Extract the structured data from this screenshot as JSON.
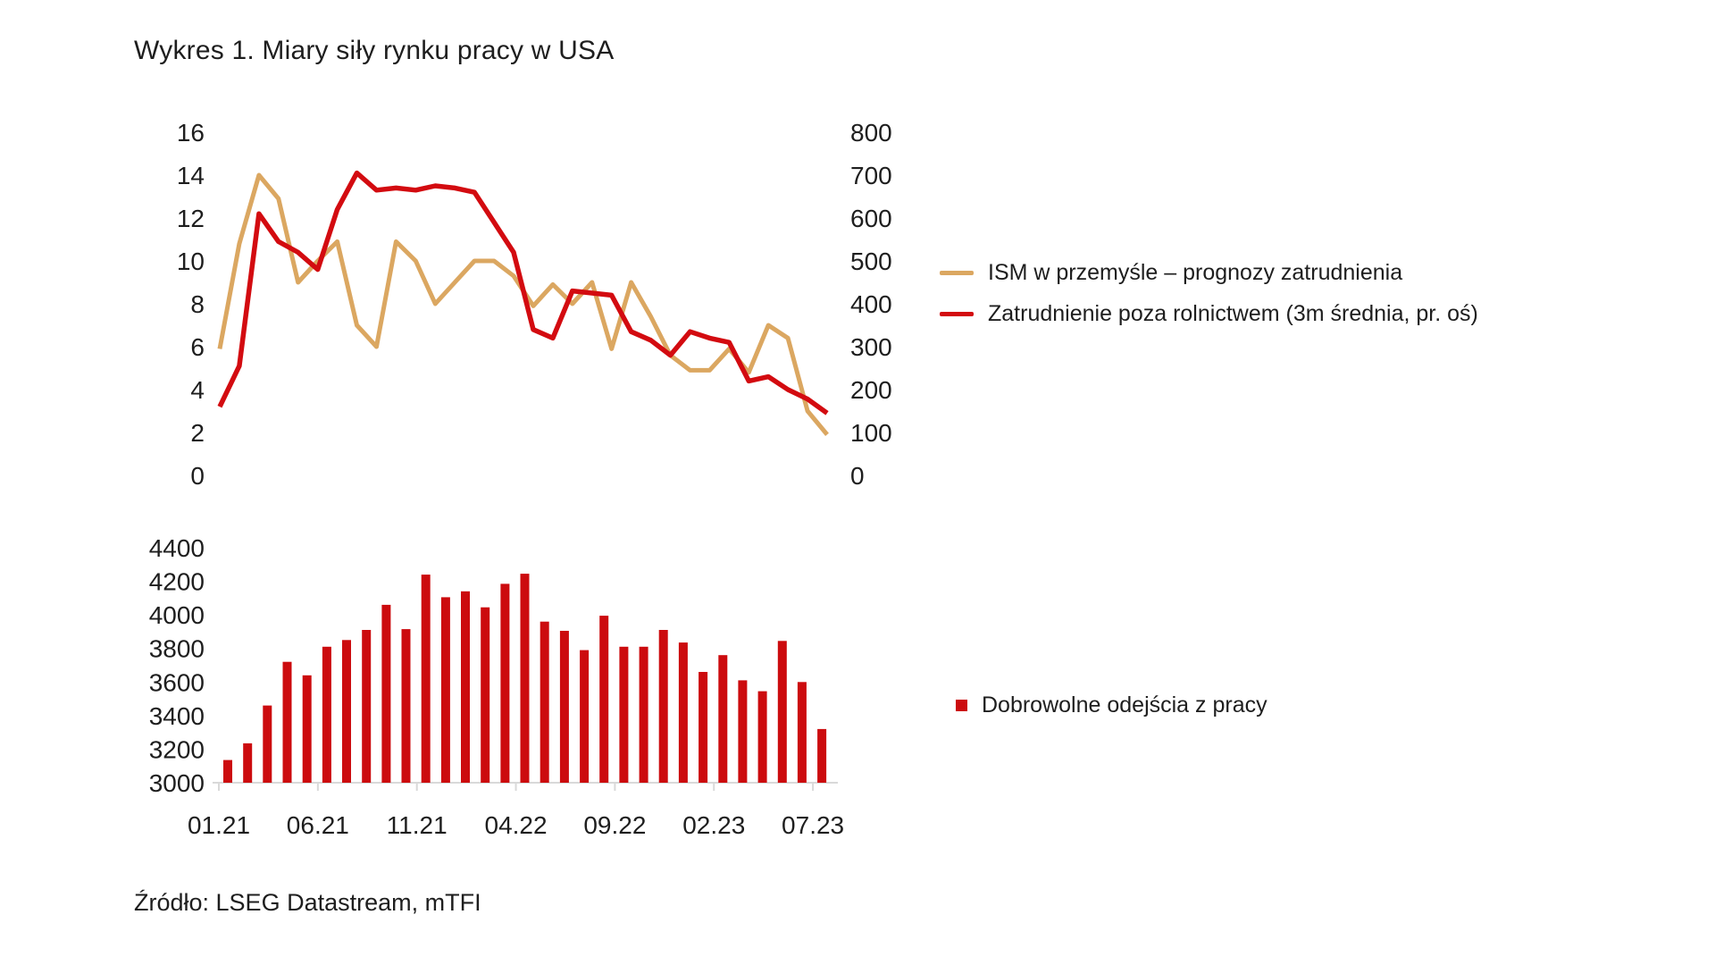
{
  "title": "Wykres 1. Miary siły rynku pracy w USA",
  "source": "Źródło: LSEG Datastream, mTFI",
  "colors": {
    "ism_line": "#DBA761",
    "payrolls_line": "#D30B10",
    "quits_bar": "#CC0B0E",
    "text": "#1e1e1e",
    "axis_baseline": "#d9d9d9"
  },
  "top_legend": [
    {
      "label": "ISM w przemyśle – prognozy zatrudnienia",
      "color": "#DBA761"
    },
    {
      "label": "Zatrudnienie poza rolnictwem (3m średnia, pr. oś)",
      "color": "#D30B10"
    }
  ],
  "bottom_legend": [
    {
      "label": "Dobrowolne odejścia z pracy",
      "color": "#CC0B0E"
    }
  ],
  "chart_data": [
    {
      "type": "line",
      "title": "Miary siły rynku pracy w USA – wykres górny",
      "x": [
        "01.21",
        "02.21",
        "03.21",
        "04.21",
        "05.21",
        "06.21",
        "07.21",
        "08.21",
        "09.21",
        "10.21",
        "11.21",
        "12.21",
        "01.22",
        "02.22",
        "03.22",
        "04.22",
        "05.22",
        "06.22",
        "07.22",
        "08.22",
        "09.22",
        "10.22",
        "11.22",
        "12.22",
        "01.23",
        "02.23",
        "03.23",
        "04.23",
        "05.23",
        "06.23",
        "07.23",
        "08.23"
      ],
      "series": [
        {
          "name": "ISM w przemyśle – prognozy zatrudnienia",
          "axis": "left",
          "color": "#DBA761",
          "values": [
            5.9,
            10.8,
            14.0,
            12.9,
            9.0,
            10.0,
            10.9,
            7.0,
            6.0,
            10.9,
            10.0,
            8.0,
            9.0,
            10.0,
            10.0,
            9.3,
            7.9,
            8.9,
            8.0,
            9.0,
            5.9,
            9.0,
            7.4,
            5.6,
            4.9,
            4.9,
            5.9,
            4.8,
            7.0,
            6.4,
            3.0,
            1.9
          ]
        },
        {
          "name": "Zatrudnienie poza rolnictwem (3m średnia, pr. oś)",
          "axis": "right",
          "color": "#D30B10",
          "values": [
            160,
            255,
            610,
            545,
            520,
            480,
            620,
            705,
            665,
            670,
            665,
            675,
            670,
            660,
            590,
            520,
            340,
            320,
            430,
            425,
            420,
            335,
            315,
            280,
            335,
            320,
            310,
            220,
            230,
            200,
            178,
            145
          ]
        }
      ],
      "left_axis": {
        "min": 0,
        "max": 16,
        "ticks": [
          0,
          2,
          4,
          6,
          8,
          10,
          12,
          14,
          16
        ]
      },
      "right_axis": {
        "min": 0,
        "max": 800,
        "ticks": [
          0,
          100,
          200,
          300,
          400,
          500,
          600,
          700,
          800
        ]
      },
      "grid": false,
      "legend_position": "right"
    },
    {
      "type": "bar",
      "title": "Dobrowolne odejścia z pracy – wykres dolny",
      "categories": [
        "01.21",
        "02.21",
        "03.21",
        "04.21",
        "05.21",
        "06.21",
        "07.21",
        "08.21",
        "09.21",
        "10.21",
        "11.21",
        "12.21",
        "01.22",
        "02.22",
        "03.22",
        "04.22",
        "05.22",
        "06.22",
        "07.22",
        "08.22",
        "09.22",
        "10.22",
        "11.22",
        "12.22",
        "01.23",
        "02.23",
        "03.23",
        "04.23",
        "05.23",
        "06.23",
        "07.23"
      ],
      "values": [
        3135,
        3235,
        3460,
        3720,
        3640,
        3810,
        3850,
        3910,
        4060,
        3915,
        4240,
        4105,
        4140,
        4045,
        4185,
        4245,
        3960,
        3905,
        3790,
        3995,
        3810,
        3810,
        3910,
        3835,
        3660,
        3760,
        3610,
        3545,
        3845,
        3600,
        3320
      ],
      "series_name": "Dobrowolne odejścia z pracy",
      "y_axis": {
        "min": 3000,
        "max": 4400,
        "ticks": [
          3000,
          3200,
          3400,
          3600,
          3800,
          4000,
          4200,
          4400
        ]
      },
      "x_tick_labels": [
        "01.21",
        "06.21",
        "11.21",
        "04.22",
        "09.22",
        "02.23",
        "07.23"
      ],
      "x_tick_indices": [
        0,
        5,
        10,
        15,
        20,
        25,
        30
      ],
      "grid": false,
      "legend_position": "right"
    }
  ]
}
